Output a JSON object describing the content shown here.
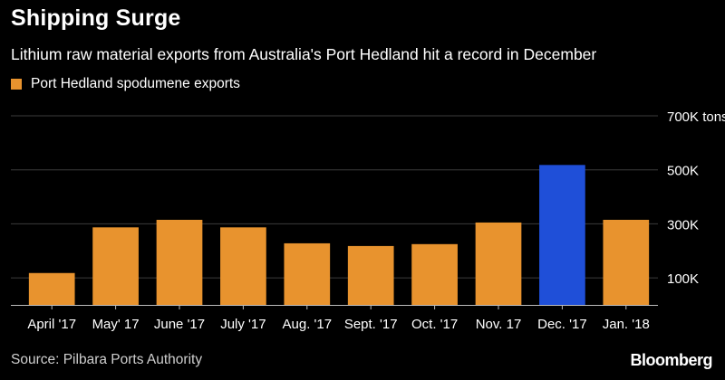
{
  "chart_data": {
    "type": "bar",
    "title": "Shipping Surge",
    "subtitle": "Lithium raw material exports from Australia's Port Hedland hit a record in December",
    "series_name": "Port Hedland spodumene exports",
    "categories": [
      "April '17",
      "May' 17",
      "June '17",
      "July '17",
      "Aug. '17",
      "Sept. '17",
      "Oct. '17",
      "Nov. 17",
      "Dec. '17",
      "Jan. '18"
    ],
    "values": [
      118000,
      287000,
      315000,
      287000,
      228000,
      218000,
      225000,
      305000,
      518000,
      315000
    ],
    "highlight_index": 8,
    "ylim": [
      0,
      700000
    ],
    "yticks": [
      100000,
      300000,
      500000,
      700000
    ],
    "ytick_labels": [
      "100K",
      "300K",
      "500K",
      "700K tons"
    ],
    "grid": true,
    "legend_position": "top-left"
  },
  "colors": {
    "bar": "#e8932e",
    "highlight": "#1f4fd8",
    "grid": "#3c3c3c",
    "axis": "#bdbdbd"
  },
  "source": "Source: Pilbara Ports Authority",
  "brand": "Bloomberg"
}
